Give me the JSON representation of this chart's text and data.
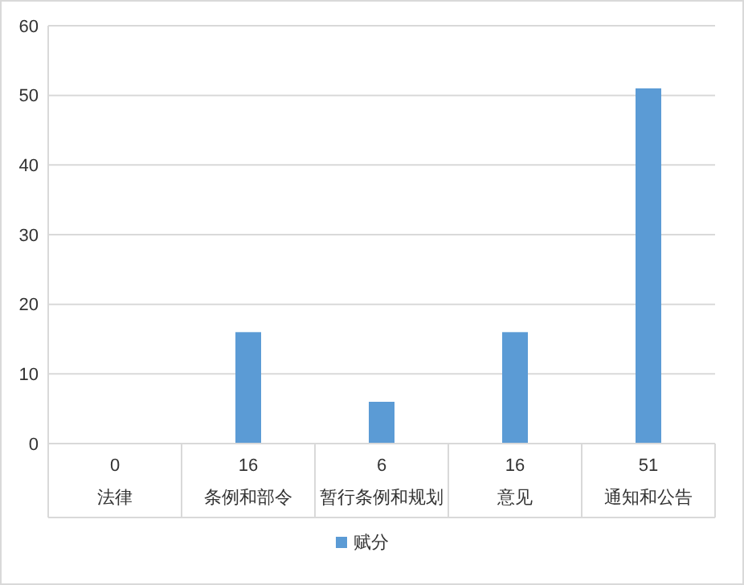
{
  "chart_data": {
    "type": "bar",
    "categories": [
      "法律",
      "条例和部令",
      "暂行条例和规划",
      "意见",
      "通知和公告"
    ],
    "series": [
      {
        "name": "赋分",
        "color": "#5b9bd5",
        "values": [
          0,
          16,
          6,
          16,
          51
        ]
      }
    ],
    "ylim": [
      0,
      60
    ],
    "yticks": [
      0,
      10,
      20,
      30,
      40,
      50,
      60
    ],
    "grid": "y",
    "legend": "bottom",
    "data_labels": true
  }
}
